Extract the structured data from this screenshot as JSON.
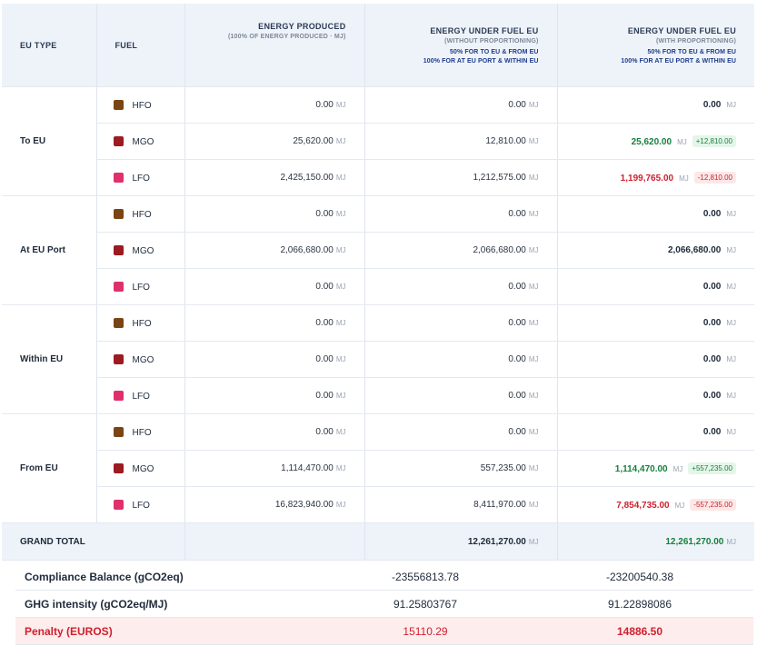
{
  "headers": {
    "eu_type": "EU TYPE",
    "fuel": "FUEL",
    "produced_title": "ENERGY PRODUCED",
    "produced_sub": "(100% OF ENERGY PRODUCED · MJ)",
    "without_title": "ENERGY UNDER FUEL EU",
    "without_sub": "(WITHOUT PROPORTIONING)",
    "without_note1": "50% FOR TO EU & FROM EU",
    "without_note2": "100% FOR AT EU PORT & WITHIN EU",
    "with_title": "ENERGY UNDER FUEL EU",
    "with_sub": "(WITH PROPORTIONING)",
    "with_note1": "50% FOR TO EU & FROM EU",
    "with_note2": "100% FOR AT EU PORT & WITHIN EU"
  },
  "unit": "MJ",
  "colors": {
    "HFO": "#7a4413",
    "MGO": "#9b1b21",
    "LFO": "#e0306b",
    "green": "#16803c",
    "red": "#d0202e"
  },
  "groups": [
    {
      "type": "To EU",
      "rows": [
        {
          "fuel": "HFO",
          "produced": "0.00",
          "without": "0.00",
          "with": "0.00",
          "with_style": "bold",
          "badge": ""
        },
        {
          "fuel": "MGO",
          "produced": "25,620.00",
          "without": "12,810.00",
          "with": "25,620.00",
          "with_style": "green",
          "badge": "+12,810.00"
        },
        {
          "fuel": "LFO",
          "produced": "2,425,150.00",
          "without": "1,212,575.00",
          "with": "1,199,765.00",
          "with_style": "red",
          "badge": "-12,810.00"
        }
      ]
    },
    {
      "type": "At EU Port",
      "rows": [
        {
          "fuel": "HFO",
          "produced": "0.00",
          "without": "0.00",
          "with": "0.00",
          "with_style": "bold",
          "badge": ""
        },
        {
          "fuel": "MGO",
          "produced": "2,066,680.00",
          "without": "2,066,680.00",
          "with": "2,066,680.00",
          "with_style": "bold",
          "badge": ""
        },
        {
          "fuel": "LFO",
          "produced": "0.00",
          "without": "0.00",
          "with": "0.00",
          "with_style": "bold",
          "badge": ""
        }
      ]
    },
    {
      "type": "Within EU",
      "rows": [
        {
          "fuel": "HFO",
          "produced": "0.00",
          "without": "0.00",
          "with": "0.00",
          "with_style": "bold",
          "badge": ""
        },
        {
          "fuel": "MGO",
          "produced": "0.00",
          "without": "0.00",
          "with": "0.00",
          "with_style": "bold",
          "badge": ""
        },
        {
          "fuel": "LFO",
          "produced": "0.00",
          "without": "0.00",
          "with": "0.00",
          "with_style": "bold",
          "badge": ""
        }
      ]
    },
    {
      "type": "From EU",
      "rows": [
        {
          "fuel": "HFO",
          "produced": "0.00",
          "without": "0.00",
          "with": "0.00",
          "with_style": "bold",
          "badge": ""
        },
        {
          "fuel": "MGO",
          "produced": "1,114,470.00",
          "without": "557,235.00",
          "with": "1,114,470.00",
          "with_style": "green",
          "badge": "+557,235.00"
        },
        {
          "fuel": "LFO",
          "produced": "16,823,940.00",
          "without": "8,411,970.00",
          "with": "7,854,735.00",
          "with_style": "red",
          "badge": "-557,235.00"
        }
      ]
    }
  ],
  "grand_total": {
    "label": "GRAND TOTAL",
    "without": "12,261,270.00",
    "with": "12,261,270.00"
  },
  "summary": [
    {
      "label": "Compliance Balance (gCO2eq)",
      "a": "-23556813.78",
      "b": "-23200540.38",
      "penalty": false
    },
    {
      "label": "GHG intensity (gCO2eq/MJ)",
      "a": "91.25803767",
      "b": "91.22898086",
      "penalty": false
    },
    {
      "label": "Penalty (EUROS)",
      "a": "15110.29",
      "b": "14886.50",
      "penalty": true
    }
  ]
}
